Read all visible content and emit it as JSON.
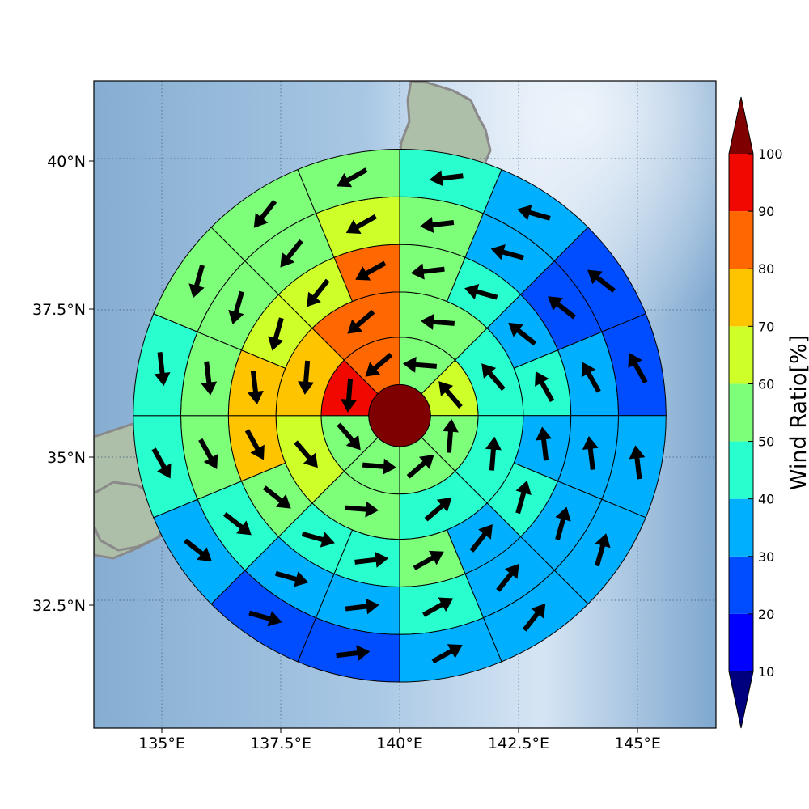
{
  "chart_data": {
    "type": "polar-sector-map",
    "title": "",
    "x_axis": {
      "ticks": [
        135,
        137.5,
        140,
        142.5,
        145
      ],
      "tick_labels": [
        "135°E",
        "137.5°E",
        "140°E",
        "142.5°E",
        "145°E"
      ]
    },
    "y_axis": {
      "ticks": [
        32.5,
        35,
        37.5,
        40
      ],
      "tick_labels": [
        "32.5°N",
        "35°N",
        "37.5°N",
        "40°N"
      ]
    },
    "grid": true,
    "center": {
      "lon": 140.0,
      "lat": 35.7,
      "value": 100
    },
    "ring_radius_deg": [
      0.65,
      1.65,
      2.6,
      3.6,
      4.6,
      5.6
    ],
    "rings": [
      {
        "sectors": 8,
        "start_deg": 90,
        "values": [
          59,
          60,
          55,
          51,
          56,
          52,
          95,
          82
        ]
      },
      {
        "sectors": 8,
        "start_deg": 90,
        "values": [
          57,
          45,
          42,
          42,
          57,
          60,
          77,
          83
        ]
      },
      {
        "sectors": 16,
        "start_deg": 90,
        "values": [
          53,
          44,
          37,
          41,
          37,
          47,
          38,
          56,
          45,
          47,
          55,
          76,
          72,
          65,
          63,
          84
        ]
      },
      {
        "sectors": 16,
        "start_deg": 90,
        "values": [
          55,
          37,
          25,
          35,
          37,
          38,
          37,
          42,
          37,
          33,
          46,
          51,
          53,
          55,
          59,
          63
        ]
      },
      {
        "sectors": 16,
        "start_deg": 90,
        "values": [
          45,
          35,
          23,
          23,
          37,
          37,
          39,
          36,
          24,
          23,
          38,
          42,
          48,
          54,
          56,
          57
        ]
      }
    ],
    "colorbar": {
      "label": "Wind Ratio[%]",
      "tick_values": [
        10,
        20,
        30,
        40,
        50,
        60,
        70,
        80,
        90,
        100
      ],
      "tick_labels": [
        "10",
        "20",
        "30",
        "40",
        "50",
        "60",
        "70",
        "80",
        "90",
        "100"
      ],
      "extend": "both",
      "colors": {
        "under": "#00007f",
        "bands": [
          "#0000ff",
          "#004cff",
          "#00b0ff",
          "#29ffce",
          "#7dff7a",
          "#ceff29",
          "#ffc400",
          "#ff6800",
          "#f10800"
        ],
        "over": "#7f0000"
      }
    },
    "colors": {
      "ocean": "#8fb7d8",
      "ocean_light": "#dde9f5",
      "land": "#a9bfa5",
      "coast": "#888888"
    }
  }
}
